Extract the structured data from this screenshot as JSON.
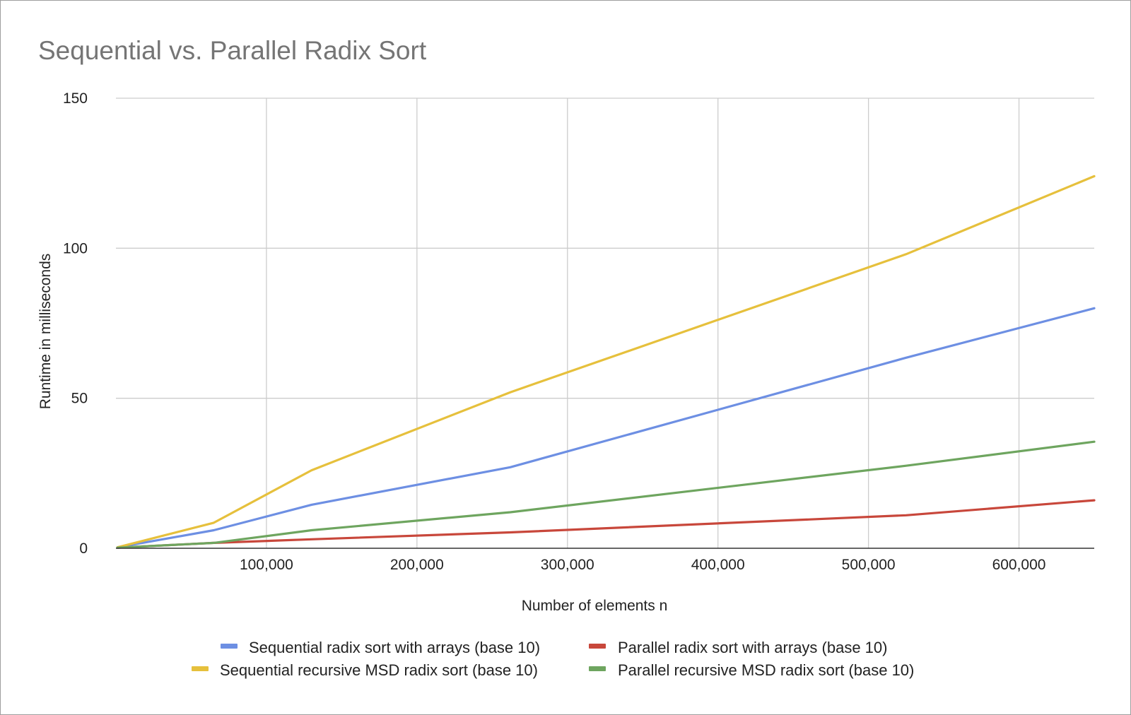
{
  "chart_data": {
    "type": "line",
    "title": "Sequential vs. Parallel Radix Sort",
    "xlabel": "Number of elements n",
    "ylabel": "Runtime in milliseconds",
    "xlim": [
      0,
      650000
    ],
    "ylim": [
      0,
      150
    ],
    "xticks": [
      100000,
      200000,
      300000,
      400000,
      500000,
      600000
    ],
    "xtick_labels": [
      "100,000",
      "200,000",
      "300,000",
      "400,000",
      "500,000",
      "600,000"
    ],
    "yticks": [
      0,
      50,
      100,
      150
    ],
    "ytick_labels": [
      "0",
      "50",
      "100",
      "150"
    ],
    "grid": true,
    "legend_position": "bottom",
    "x": [
      1000,
      65000,
      130000,
      262000,
      525000,
      650000
    ],
    "series": [
      {
        "name": "Sequential radix sort with arrays (base 10)",
        "color": "#6d8fe3",
        "values": [
          0.3,
          6,
          14.5,
          27,
          63.5,
          80
        ]
      },
      {
        "name": "Parallel radix sort with arrays (base 10)",
        "color": "#c8473b",
        "values": [
          0.2,
          1.8,
          3,
          5.3,
          11,
          16
        ]
      },
      {
        "name": "Sequential recursive MSD radix sort (base 10)",
        "color": "#e6c03c",
        "values": [
          0.3,
          8.5,
          26,
          52,
          98,
          124
        ]
      },
      {
        "name": "Parallel recursive MSD radix sort (base 10)",
        "color": "#6ea55f",
        "values": [
          0.2,
          1.8,
          6,
          12,
          27.5,
          35.5
        ]
      }
    ]
  }
}
